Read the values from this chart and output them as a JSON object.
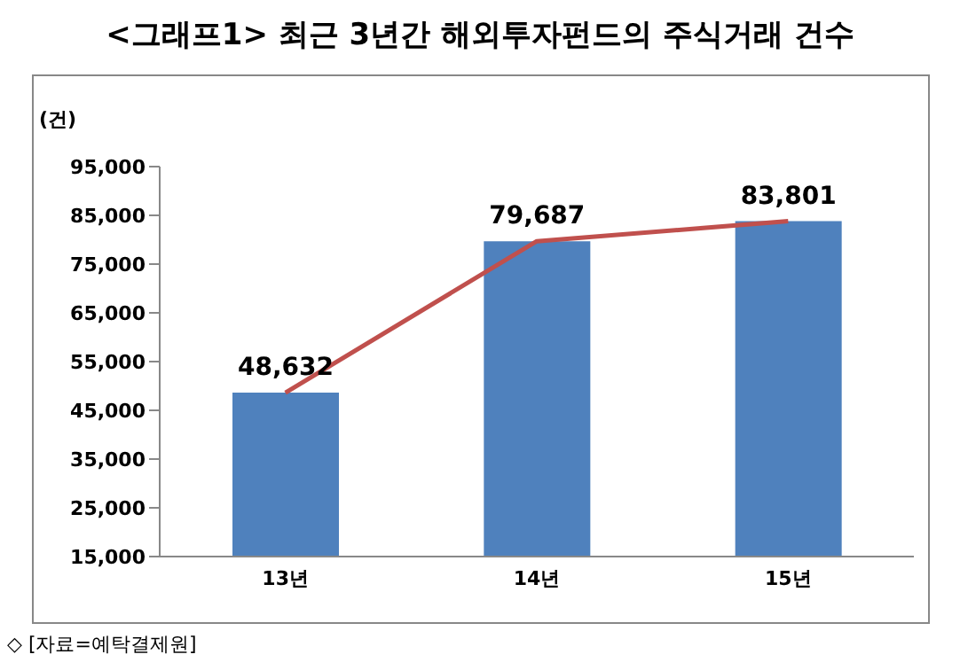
{
  "chart_data": {
    "type": "bar",
    "title": "<그래프1> 최근 3년간 해외투자펀드의 주식거래 건수",
    "ylabel": "(건)",
    "annotations": [
      "◇ [자료=예탁결제원]"
    ],
    "categories": [
      "13년",
      "14년",
      "15년"
    ],
    "series": [
      {
        "color": "#4f81bd",
        "values": [
          48632,
          79687,
          83801
        ],
        "value_labels": [
          "48,632",
          "79,687",
          "83,801"
        ]
      },
      {
        "type": "line",
        "color": "#c0504d",
        "values": [
          48632,
          79687,
          83801
        ],
        "marker": "none",
        "line_style": "solid"
      }
    ],
    "ylim": [
      15000,
      95000
    ],
    "yticks": [
      {
        "value": 15000,
        "label": "15,000"
      },
      {
        "value": 25000,
        "label": "25,000"
      },
      {
        "value": 35000,
        "label": "35,000"
      },
      {
        "value": 45000,
        "label": "45,000"
      },
      {
        "value": 55000,
        "label": "55,000"
      },
      {
        "value": 65000,
        "label": "65,000"
      },
      {
        "value": 75000,
        "label": "75,000"
      },
      {
        "value": 85000,
        "label": "85,000"
      },
      {
        "value": 95000,
        "label": "95,000"
      }
    ],
    "grid": false,
    "legend": false
  }
}
